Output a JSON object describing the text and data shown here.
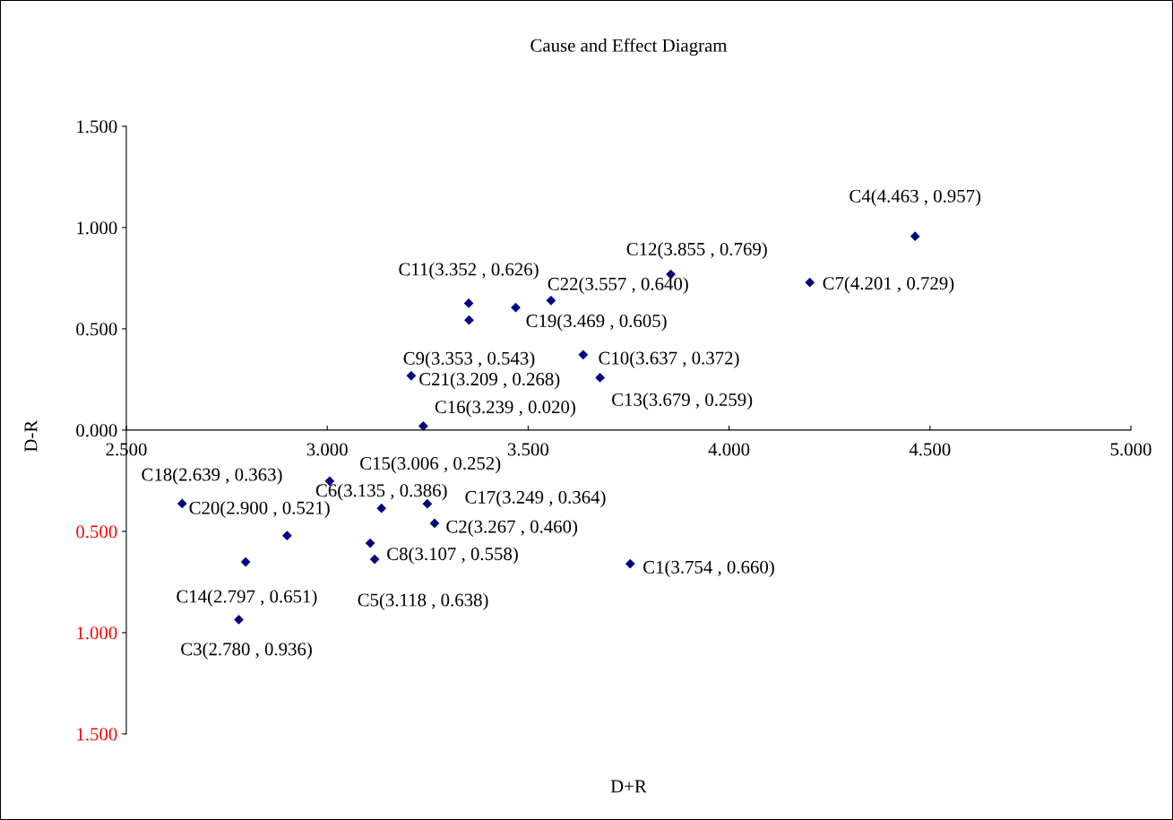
{
  "chart_data": {
    "type": "scatter",
    "title": "Cause and Effect Diagram",
    "xlabel": "D+R",
    "ylabel": "D-R",
    "marker": "diamond",
    "grid": false,
    "xlim": [
      2.5,
      5.0
    ],
    "ylim": [
      -1.5,
      1.5
    ],
    "xticks": [
      {
        "value": 2.5,
        "label": "2.500"
      },
      {
        "value": 3.0,
        "label": "3.000"
      },
      {
        "value": 3.5,
        "label": "3.500"
      },
      {
        "value": 4.0,
        "label": "4.000"
      },
      {
        "value": 4.5,
        "label": "4.500"
      },
      {
        "value": 5.0,
        "label": "5.000"
      }
    ],
    "yticks": [
      {
        "value": 1.5,
        "label": "1.500"
      },
      {
        "value": 1.0,
        "label": "1.000"
      },
      {
        "value": 0.5,
        "label": "0.500"
      },
      {
        "value": 0.0,
        "label": "0.000"
      },
      {
        "value": -0.5,
        "label": "0.500"
      },
      {
        "value": -1.0,
        "label": "1.000"
      },
      {
        "value": -1.5,
        "label": "1.500"
      }
    ],
    "series": [
      {
        "color": "#000080",
        "x": [
          4.463,
          3.855,
          4.201,
          3.352,
          3.557,
          3.469,
          3.353,
          3.637,
          3.209,
          3.679,
          3.239,
          3.006,
          2.639,
          3.135,
          3.249,
          3.267,
          2.9,
          3.107,
          2.797,
          3.118,
          3.754,
          2.78
        ],
        "values": [
          0.957,
          0.769,
          0.729,
          0.626,
          0.64,
          0.605,
          0.543,
          0.372,
          0.268,
          0.259,
          0.02,
          -0.252,
          -0.363,
          -0.386,
          -0.364,
          -0.46,
          -0.521,
          -0.558,
          -0.651,
          -0.638,
          -0.66,
          -0.936
        ]
      }
    ],
    "annotations": [
      {
        "text": "C4(4.463 , 0.957)",
        "x": 4.463,
        "y": 0.957
      },
      {
        "text": "C12(3.855 , 0.769)",
        "x": 3.855,
        "y": 0.769
      },
      {
        "text": "C7(4.201 , 0.729)",
        "x": 4.201,
        "y": 0.729
      },
      {
        "text": "C11(3.352 , 0.626)",
        "x": 3.352,
        "y": 0.626
      },
      {
        "text": "C22(3.557 , 0.640)",
        "x": 3.557,
        "y": 0.64
      },
      {
        "text": "C19(3.469 , 0.605)",
        "x": 3.469,
        "y": 0.605
      },
      {
        "text": "C9(3.353 , 0.543)",
        "x": 3.353,
        "y": 0.543
      },
      {
        "text": "C10(3.637 , 0.372)",
        "x": 3.637,
        "y": 0.372
      },
      {
        "text": "C21(3.209 , 0.268)",
        "x": 3.209,
        "y": 0.268
      },
      {
        "text": "C13(3.679 , 0.259)",
        "x": 3.679,
        "y": 0.259
      },
      {
        "text": "C16(3.239 , 0.020)",
        "x": 3.239,
        "y": 0.02
      },
      {
        "text": "C15(3.006 , 0.252)",
        "x": 3.006,
        "y": -0.252
      },
      {
        "text": "C18(2.639 , 0.363)",
        "x": 2.639,
        "y": -0.363
      },
      {
        "text": "C6(3.135 , 0.386)",
        "x": 3.135,
        "y": -0.386
      },
      {
        "text": "C17(3.249 , 0.364)",
        "x": 3.249,
        "y": -0.364
      },
      {
        "text": "C2(3.267 , 0.460)",
        "x": 3.267,
        "y": -0.46
      },
      {
        "text": "C20(2.900 , 0.521)",
        "x": 2.9,
        "y": -0.521
      },
      {
        "text": "C8(3.107 , 0.558)",
        "x": 3.107,
        "y": -0.558
      },
      {
        "text": "C14(2.797 , 0.651)",
        "x": 2.797,
        "y": -0.651
      },
      {
        "text": "C5(3.118 , 0.638)",
        "x": 3.118,
        "y": -0.638
      },
      {
        "text": "C1(3.754 , 0.660)",
        "x": 3.754,
        "y": -0.66
      },
      {
        "text": "C3(2.780 , 0.936)",
        "x": 2.78,
        "y": -0.936
      }
    ]
  }
}
